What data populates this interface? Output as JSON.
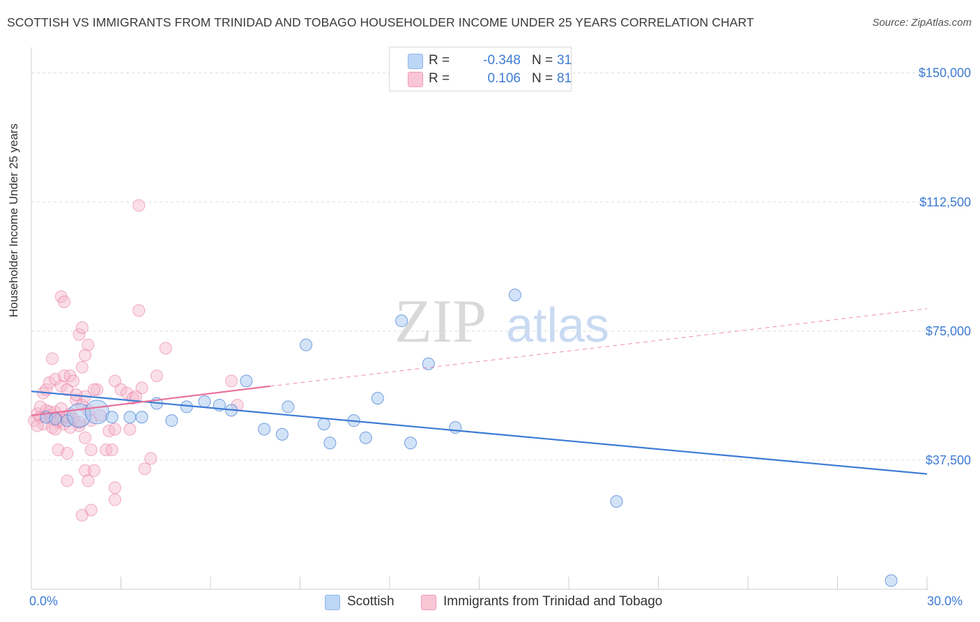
{
  "title": "SCOTTISH VS IMMIGRANTS FROM TRINIDAD AND TOBAGO HOUSEHOLDER INCOME UNDER 25 YEARS CORRELATION CHART",
  "source": "Source: ZipAtlas.com",
  "watermark": {
    "zip": "ZIP",
    "atlas": "atlas"
  },
  "legend": {
    "rows": [
      {
        "r_label": "R =",
        "r_value": "-0.348",
        "n_label": "N =",
        "n_value": "31",
        "color": "#a8c8f0"
      },
      {
        "r_label": "R =",
        "r_value": "0.106",
        "n_label": "N =",
        "n_value": "81",
        "color": "#f5b8cc"
      }
    ]
  },
  "bottom_legend": {
    "scottish": "Scottish",
    "trinidad": "Immigrants from Trinidad and Tobago"
  },
  "x_ticks": {
    "left": "0.0%",
    "right": "30.0%"
  },
  "chart_data": {
    "type": "scatter",
    "title": "SCOTTISH VS IMMIGRANTS FROM TRINIDAD AND TOBAGO HOUSEHOLDER INCOME UNDER 25 YEARS CORRELATION CHART",
    "xlabel": "",
    "ylabel": "Householder Income Under 25 years",
    "xlim": [
      0,
      30
    ],
    "ylim": [
      0,
      155000
    ],
    "y_ticks": [
      {
        "value": 37500,
        "label": "$37,500"
      },
      {
        "value": 75000,
        "label": "$75,000"
      },
      {
        "value": 112500,
        "label": "$112,500"
      },
      {
        "value": 150000,
        "label": "$150,000"
      }
    ],
    "grid": true,
    "colors": {
      "scottish": "#3d7bd4",
      "scottish_fill": "#a8c8f0",
      "trinidad": "#e8709a",
      "trinidad_fill": "#f5b8cc"
    },
    "series": [
      {
        "name": "Scottish",
        "r": -0.348,
        "n": 31,
        "trend": {
          "x": [
            0,
            30
          ],
          "y": [
            57500,
            33500
          ]
        },
        "points": [
          [
            0.5,
            50000
          ],
          [
            0.8,
            49500
          ],
          [
            1.2,
            49000
          ],
          [
            1.6,
            50500
          ],
          [
            2.2,
            51500
          ],
          [
            2.7,
            50000
          ],
          [
            3.3,
            50000
          ],
          [
            3.7,
            50000
          ],
          [
            4.2,
            54000
          ],
          [
            4.7,
            49000
          ],
          [
            5.2,
            53000
          ],
          [
            5.8,
            54500
          ],
          [
            6.3,
            53500
          ],
          [
            6.7,
            52000
          ],
          [
            7.2,
            60500
          ],
          [
            7.8,
            46500
          ],
          [
            8.4,
            45000
          ],
          [
            8.6,
            53000
          ],
          [
            9.2,
            71000
          ],
          [
            9.8,
            48000
          ],
          [
            10.0,
            42500
          ],
          [
            10.8,
            49000
          ],
          [
            11.2,
            44000
          ],
          [
            11.6,
            55500
          ],
          [
            12.7,
            42500
          ],
          [
            13.3,
            65500
          ],
          [
            14.2,
            47000
          ],
          [
            12.4,
            78000
          ],
          [
            16.2,
            85500
          ],
          [
            19.6,
            25500
          ],
          [
            28.8,
            2500
          ]
        ]
      },
      {
        "name": "Immigrants from Trinidad and Tobago",
        "r": 0.106,
        "n": 81,
        "trend": {
          "x": [
            0,
            8
          ],
          "y": [
            50500,
            59000
          ]
        },
        "trend_extended": {
          "x": [
            8,
            30
          ],
          "y": [
            59000,
            81500
          ]
        },
        "points": [
          [
            0.1,
            49000
          ],
          [
            0.2,
            51000
          ],
          [
            0.3,
            50000
          ],
          [
            0.4,
            48000
          ],
          [
            0.5,
            52000
          ],
          [
            0.6,
            50500
          ],
          [
            0.7,
            49500
          ],
          [
            0.8,
            51500
          ],
          [
            0.9,
            48500
          ],
          [
            1.0,
            50000
          ],
          [
            0.2,
            47500
          ],
          [
            0.3,
            53000
          ],
          [
            0.4,
            57000
          ],
          [
            0.5,
            58000
          ],
          [
            0.6,
            60000
          ],
          [
            0.7,
            47000
          ],
          [
            0.8,
            46500
          ],
          [
            0.9,
            49000
          ],
          [
            1.0,
            52500
          ],
          [
            1.1,
            48000
          ],
          [
            1.2,
            50000
          ],
          [
            1.3,
            51000
          ],
          [
            1.4,
            49500
          ],
          [
            1.5,
            55000
          ],
          [
            1.6,
            47500
          ],
          [
            1.7,
            53500
          ],
          [
            1.8,
            56000
          ],
          [
            1.9,
            52000
          ],
          [
            2.0,
            49000
          ],
          [
            0.7,
            67000
          ],
          [
            0.8,
            61000
          ],
          [
            1.0,
            59000
          ],
          [
            1.1,
            62000
          ],
          [
            1.2,
            58000
          ],
          [
            1.3,
            62000
          ],
          [
            1.5,
            56500
          ],
          [
            1.6,
            48500
          ],
          [
            1.7,
            64500
          ],
          [
            1.8,
            44000
          ],
          [
            1.9,
            71000
          ],
          [
            1.6,
            74000
          ],
          [
            1.7,
            76000
          ],
          [
            1.8,
            68000
          ],
          [
            1.0,
            85000
          ],
          [
            1.1,
            83500
          ],
          [
            0.9,
            40500
          ],
          [
            1.2,
            39500
          ],
          [
            1.2,
            31500
          ],
          [
            1.8,
            34500
          ],
          [
            1.9,
            31500
          ],
          [
            2.1,
            34500
          ],
          [
            2.0,
            40500
          ],
          [
            2.2,
            58000
          ],
          [
            2.3,
            50500
          ],
          [
            2.5,
            40500
          ],
          [
            2.6,
            46000
          ],
          [
            2.7,
            40500
          ],
          [
            2.8,
            46500
          ],
          [
            2.8,
            26000
          ],
          [
            2.0,
            23000
          ],
          [
            1.7,
            21500
          ],
          [
            2.8,
            29500
          ],
          [
            2.8,
            60500
          ],
          [
            3.0,
            58000
          ],
          [
            3.2,
            57000
          ],
          [
            3.3,
            46500
          ],
          [
            3.4,
            55500
          ],
          [
            3.5,
            56000
          ],
          [
            3.6,
            81000
          ],
          [
            3.7,
            58500
          ],
          [
            3.8,
            35000
          ],
          [
            4.0,
            38000
          ],
          [
            4.2,
            62000
          ],
          [
            4.5,
            70000
          ],
          [
            6.7,
            60500
          ],
          [
            6.9,
            53500
          ],
          [
            3.6,
            111500
          ],
          [
            2.1,
            58000
          ],
          [
            1.4,
            60500
          ],
          [
            0.6,
            51500
          ],
          [
            1.3,
            47000
          ]
        ]
      }
    ]
  }
}
